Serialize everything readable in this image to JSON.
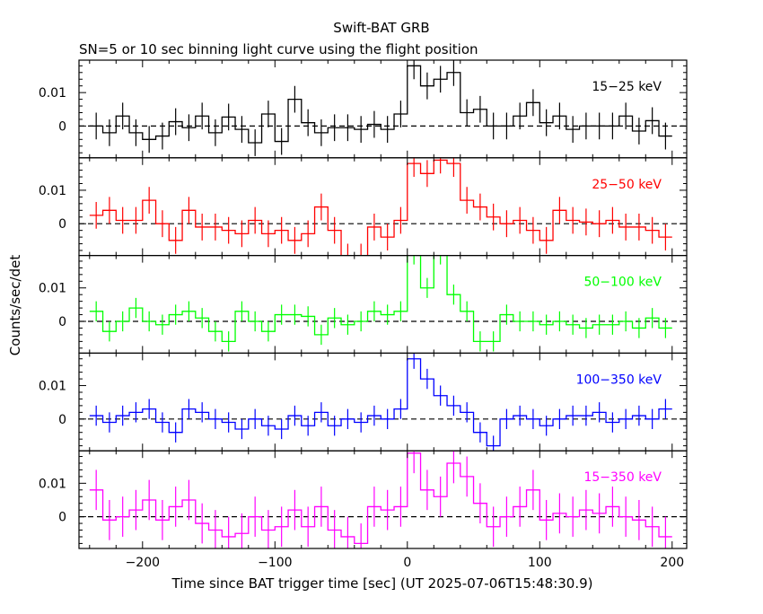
{
  "chart_data": {
    "type": "line",
    "title": "Swift-BAT GRB",
    "subtitle": "SN=5 or 10 sec binning light curve using the flight position",
    "xlabel": "Time since BAT trigger time [sec] (UT 2025-07-06T15:48:30.9)",
    "ylabel": "Counts/sec/det",
    "xlim": [
      -248,
      211
    ],
    "ylim": [
      -0.0095,
      0.0197
    ],
    "xticks": [
      -200,
      -100,
      0,
      100,
      200
    ],
    "xtick_labels": [
      "−200",
      "−100",
      "0",
      "100",
      "200"
    ],
    "yticks": [
      0,
      0.01
    ],
    "ytick_labels": [
      "0",
      "0.01"
    ],
    "bin_width": 10,
    "x": [
      -235,
      -225,
      -215,
      -205,
      -195,
      -185,
      -175,
      -165,
      -155,
      -145,
      -135,
      -125,
      -115,
      -105,
      -95,
      -85,
      -75,
      -65,
      -55,
      -45,
      -35,
      -25,
      -15,
      -5,
      5,
      15,
      25,
      35,
      45,
      55,
      65,
      75,
      85,
      95,
      105,
      115,
      125,
      135,
      145,
      155,
      165,
      175,
      185,
      195
    ],
    "series": [
      {
        "name": "15−25 keV",
        "color": "#000000",
        "error": 0.004,
        "values": [
          0,
          -0.002,
          0.003,
          -0.002,
          -0.004,
          -0.003,
          0.0013,
          -0.0005,
          0.003,
          -0.002,
          0.0027,
          -0.001,
          -0.005,
          0.0036,
          -0.0046,
          0.008,
          0.001,
          -0.002,
          -0.0005,
          -0.0005,
          -0.001,
          0.0005,
          -0.001,
          0.0036,
          0.018,
          0.012,
          0.014,
          0.016,
          0.004,
          0.005,
          0,
          0,
          0.003,
          0.007,
          0.001,
          0.003,
          -0.001,
          0,
          0,
          0,
          0.003,
          -0.0015,
          0.0016,
          -0.003
        ]
      },
      {
        "name": "25−50 keV",
        "color": "#ff0000",
        "error": 0.004,
        "values": [
          0.0025,
          0.004,
          0.001,
          0.001,
          0.007,
          0,
          -0.005,
          0.004,
          -0.001,
          -0.001,
          -0.002,
          -0.003,
          0.001,
          -0.003,
          -0.002,
          -0.005,
          -0.003,
          0.005,
          -0.002,
          -0.01,
          -0.01,
          -0.001,
          -0.004,
          0.001,
          0.018,
          0.015,
          0.019,
          0.018,
          0.007,
          0.005,
          0.002,
          0,
          0.001,
          -0.002,
          -0.005,
          0.004,
          0.001,
          0.0005,
          0,
          0.001,
          -0.001,
          -0.001,
          -0.002,
          -0.004
        ]
      },
      {
        "name": "50−100 keV",
        "color": "#00ff00",
        "error": 0.003,
        "values": [
          0.003,
          -0.003,
          0,
          0.004,
          0,
          -0.001,
          0.002,
          0.003,
          0.001,
          -0.003,
          -0.006,
          0.003,
          0,
          -0.003,
          0.002,
          0.002,
          0.0015,
          -0.004,
          0.001,
          -0.001,
          0,
          0.003,
          0.002,
          0.003,
          0.02,
          0.01,
          0.02,
          0.008,
          0.003,
          -0.006,
          -0.006,
          0.002,
          0,
          0,
          -0.001,
          0,
          -0.001,
          -0.002,
          -0.001,
          -0.001,
          0,
          -0.002,
          0.001,
          -0.002
        ]
      },
      {
        "name": "100−350 keV",
        "color": "#0000ff",
        "error": 0.003,
        "values": [
          0.001,
          -0.001,
          0.001,
          0.002,
          0.003,
          -0.001,
          -0.004,
          0.003,
          0.002,
          0,
          -0.001,
          -0.003,
          0,
          -0.002,
          -0.003,
          0.001,
          -0.002,
          0.002,
          -0.002,
          0,
          -0.001,
          0.001,
          0,
          0.003,
          0.018,
          0.012,
          0.007,
          0.004,
          0.002,
          -0.004,
          -0.008,
          0,
          0.001,
          0,
          -0.002,
          0,
          0.001,
          0.001,
          0.002,
          -0.001,
          0,
          0.001,
          0,
          0.003
        ]
      },
      {
        "name": "15−350 keV",
        "color": "#ff00ff",
        "error": 0.006,
        "values": [
          0.008,
          -0.001,
          0,
          0.002,
          0.005,
          -0.001,
          0.003,
          0.005,
          -0.002,
          -0.004,
          -0.006,
          -0.005,
          0,
          -0.004,
          -0.003,
          0.002,
          -0.003,
          0.003,
          -0.004,
          -0.006,
          -0.008,
          0.003,
          0.002,
          0.003,
          0.019,
          0.008,
          0.006,
          0.016,
          0.012,
          0.004,
          -0.003,
          0,
          0.003,
          0.008,
          -0.001,
          0.001,
          0,
          0.002,
          0.001,
          0.003,
          0,
          -0.001,
          -0.003,
          -0.006
        ]
      }
    ]
  }
}
